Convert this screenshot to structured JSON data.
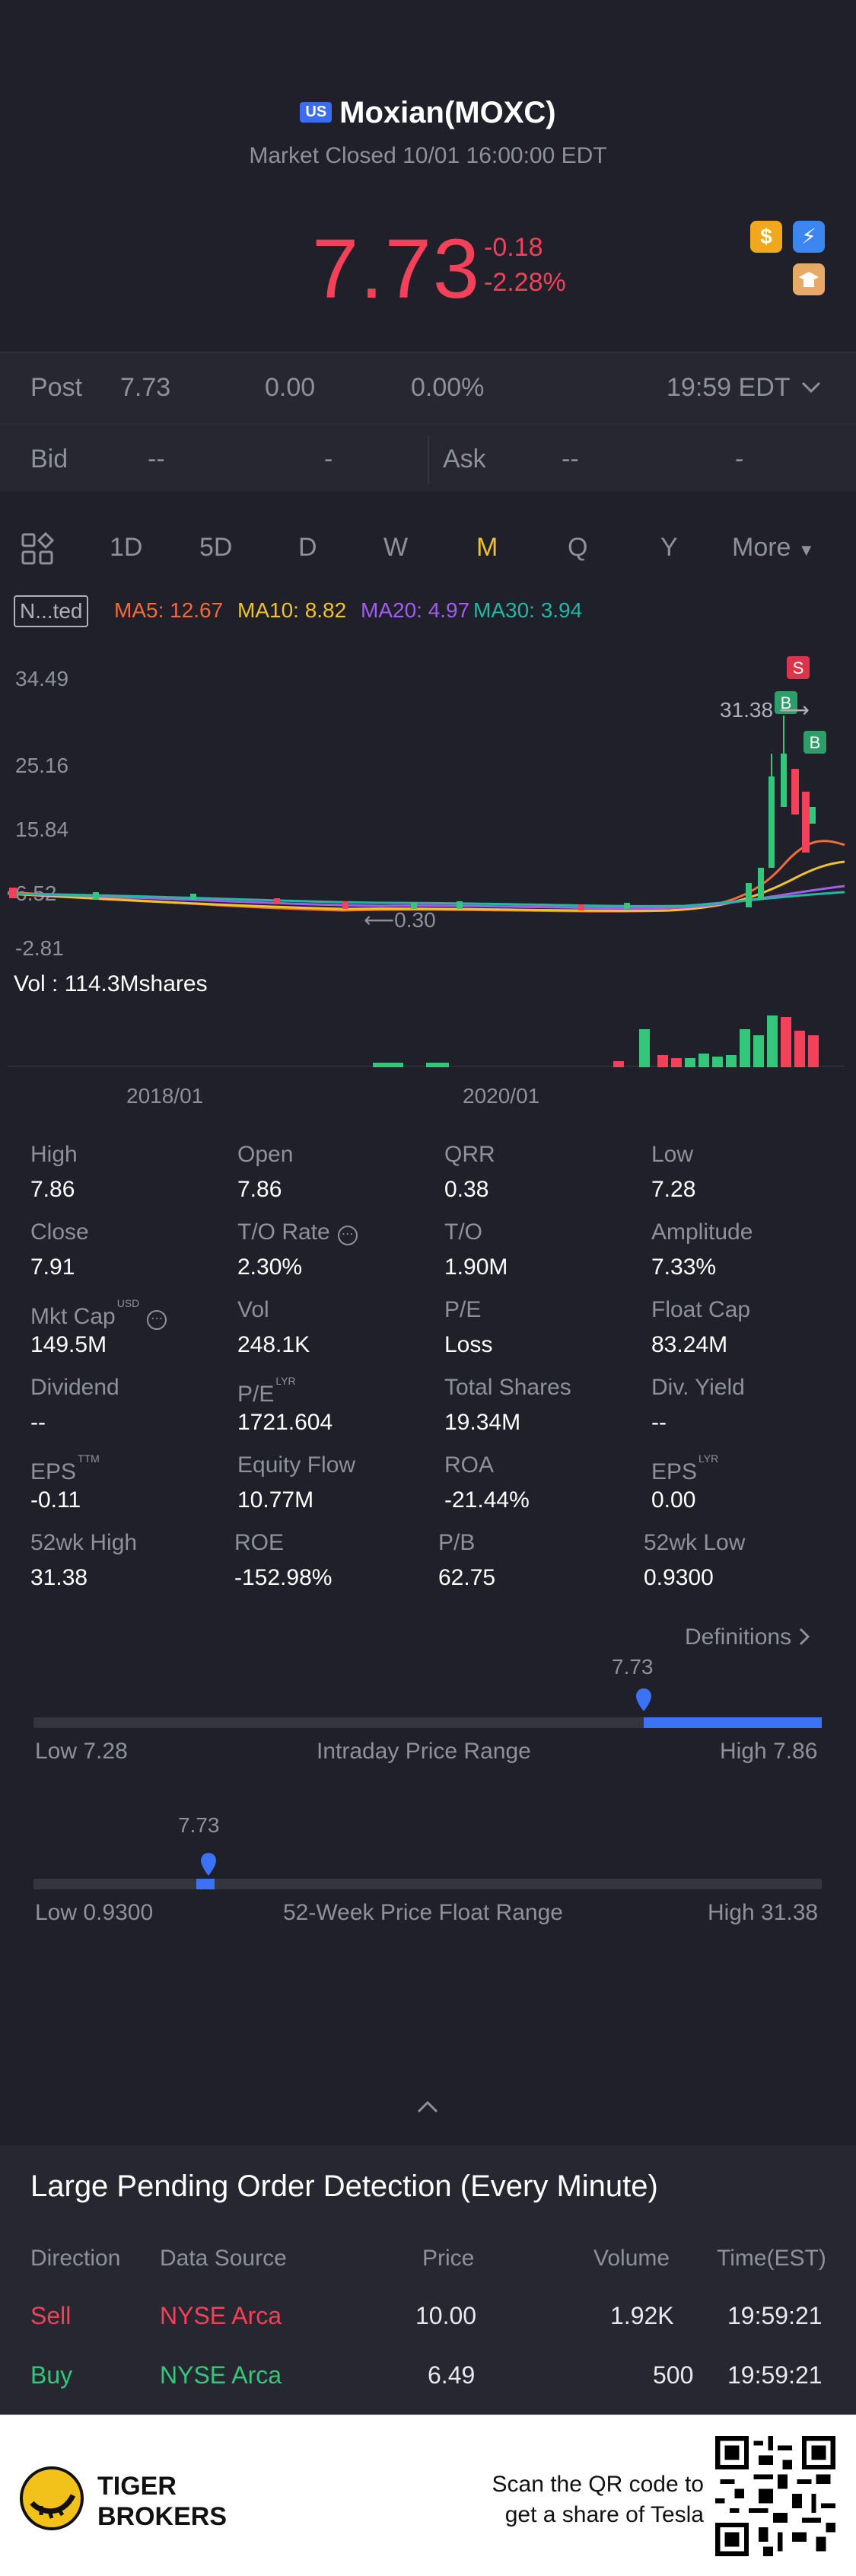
{
  "header": {
    "exchange_badge": "US",
    "title": "Moxian(MOXC)",
    "status": "Market Closed 10/01 16:00:00 EDT",
    "price": "7.73",
    "change": "-0.18",
    "change_pct": "-2.28%",
    "icons": [
      "dollar-icon",
      "lightning-icon",
      "education-icon"
    ]
  },
  "post": {
    "label": "Post",
    "price": "7.73",
    "change": "0.00",
    "change_pct": "0.00%",
    "time": "19:59 EDT"
  },
  "bid_ask": {
    "bid_label": "Bid",
    "bid_price": "--",
    "bid_size": "-",
    "ask_label": "Ask",
    "ask_price": "--",
    "ask_size": "-"
  },
  "tabs": {
    "items": [
      "1D",
      "5D",
      "D",
      "W",
      "M",
      "Q",
      "Y"
    ],
    "active": "M",
    "more": "More"
  },
  "indicators": {
    "box": "N...ted",
    "ma5": "MA5: 12.67",
    "ma10": "MA10: 8.82",
    "ma20": "MA20: 4.97",
    "ma30": "MA30: 3.94",
    "colors": {
      "ma5": "#f26b3a",
      "ma10": "#f2c22b",
      "ma20": "#a45cf0",
      "ma30": "#26b6a4"
    }
  },
  "chart_data": {
    "type": "candlestick",
    "y_ticks": [
      "34.49",
      "25.16",
      "15.84",
      "6.52",
      "-2.81"
    ],
    "ylim": [
      -2.81,
      34.49
    ],
    "x_labels": [
      "2018/01",
      "2020/01"
    ],
    "high_marker": "31.38",
    "low_marker": "0.30",
    "signals": [
      "S",
      "B",
      "B"
    ],
    "volume_label": "Vol  : 114.3Mshares"
  },
  "stats": [
    {
      "label": "High",
      "value": "7.86"
    },
    {
      "label": "Open",
      "value": "7.86"
    },
    {
      "label": "QRR",
      "value": "0.38"
    },
    {
      "label": "Low",
      "value": "7.28"
    },
    {
      "label": "Close",
      "value": "7.91"
    },
    {
      "label": "T/O Rate",
      "value": "2.30%"
    },
    {
      "label": "T/O",
      "value": "1.90M"
    },
    {
      "label": "Amplitude",
      "value": "7.33%"
    },
    {
      "label": "Mkt Cap",
      "value": "149.5M",
      "sup": "USD"
    },
    {
      "label": "Vol",
      "value": "248.1K"
    },
    {
      "label": "P/E",
      "value": "Loss"
    },
    {
      "label": "Float Cap",
      "value": "83.24M"
    },
    {
      "label": "Dividend",
      "value": "--"
    },
    {
      "label": "P/E",
      "value": "1721.604",
      "sup": "LYR"
    },
    {
      "label": "Total Shares",
      "value": "19.34M"
    },
    {
      "label": "Div. Yield",
      "value": "--"
    },
    {
      "label": "EPS",
      "value": "-0.11",
      "sup": "TTM"
    },
    {
      "label": "Equity Flow",
      "value": "10.77M"
    },
    {
      "label": "ROA",
      "value": "-21.44%"
    },
    {
      "label": "EPS",
      "value": "0.00",
      "sup": "LYR"
    },
    {
      "label": "52wk High",
      "value": "31.38"
    },
    {
      "label": "ROE",
      "value": "-152.98%"
    },
    {
      "label": "P/B",
      "value": "62.75"
    },
    {
      "label": "52wk Low",
      "value": "0.9300"
    }
  ],
  "definitions": "Definitions",
  "intraday": {
    "current": "7.73",
    "low": "Low 7.28",
    "title": "Intraday Price Range",
    "high": "High 7.86",
    "position": 0.78
  },
  "week52": {
    "current": "7.73",
    "low": "Low 0.9300",
    "title": "52-Week Price Float Range",
    "high": "High 31.38",
    "position": 0.22
  },
  "orders": {
    "title": "Large Pending Order Detection (Every Minute)",
    "headers": [
      "Direction",
      "Data Source",
      "Price",
      "Volume",
      "Time(EST)"
    ],
    "rows": [
      {
        "direction": "Sell",
        "source": "NYSE Arca",
        "price": "10.00",
        "volume": "1.92K",
        "time": "19:59:21"
      },
      {
        "direction": "Buy",
        "source": "NYSE Arca",
        "price": "6.49",
        "volume": "500",
        "time": "19:59:21"
      }
    ]
  },
  "footer": {
    "brand_line1": "TIGER",
    "brand_line2": "BROKERS",
    "scan_line1": "Scan the QR code to",
    "scan_line2": "get a share of Tesla"
  }
}
